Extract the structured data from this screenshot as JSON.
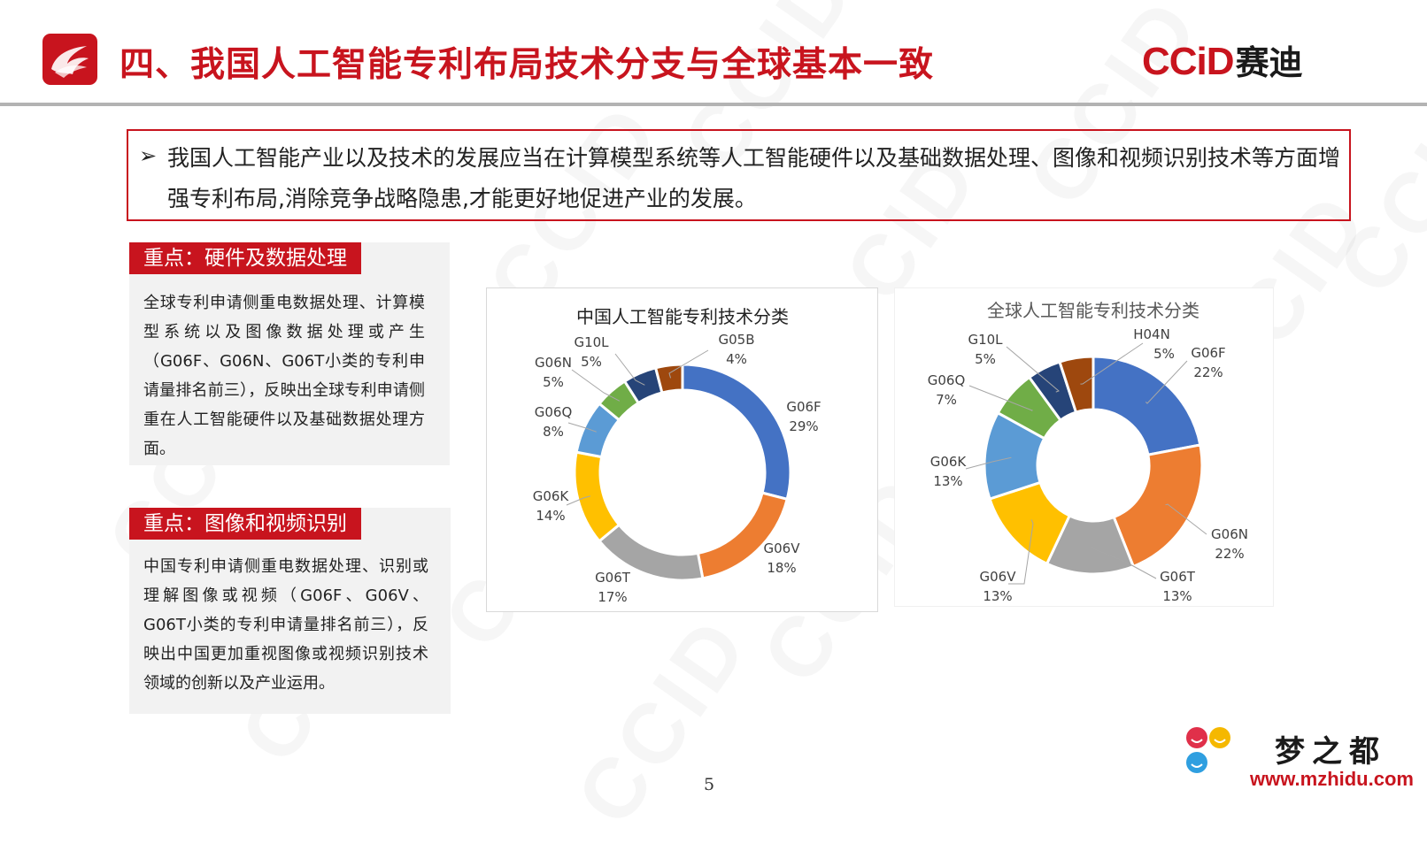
{
  "header": {
    "title": "四、我国人工智能专利布局技术分支与全球基本一致",
    "brand_latin": "CCiD",
    "brand_cn": "赛迪"
  },
  "summary": {
    "text": "我国人工智能产业以及技术的发展应当在计算模型系统等人工智能硬件以及基础数据处理、图像和视频识别技术等方面增强专利布局,消除竞争战略隐患,才能更好地促进产业的发展。"
  },
  "panels": [
    {
      "tag": "重点：硬件及数据处理",
      "text": "全球专利申请侧重电数据处理、计算模型系统以及图像数据处理或产生（G06F、G06N、G06T小类的专利申请量排名前三），反映出全球专利申请侧重在人工智能硬件以及基础数据处理方面。"
    },
    {
      "tag": "重点：图像和视频识别",
      "text": "中国专利申请侧重电数据处理、识别或理解图像或视频（G06F、G06V、G06T小类的专利申请量排名前三），反映出中国更加重视图像或视频识别技术领域的创新以及产业运用。"
    }
  ],
  "chart_data": [
    {
      "type": "pie",
      "donut": true,
      "title": "中国人工智能专利技术分类",
      "labels": [
        "G06F",
        "G06V",
        "G06T",
        "G06K",
        "G06Q",
        "G06N",
        "G10L",
        "G05B"
      ],
      "values": [
        29,
        18,
        17,
        14,
        8,
        5,
        5,
        4
      ],
      "value_labels": [
        "29%",
        "18%",
        "17%",
        "14%",
        "8%",
        "5%",
        "5%",
        "4%"
      ],
      "colors": [
        "#4472c4",
        "#ed7d31",
        "#a5a5a5",
        "#ffc000",
        "#5b9bd5",
        "#70ad47",
        "#264478",
        "#9e480e"
      ]
    },
    {
      "type": "pie",
      "donut": true,
      "title": "全球人工智能专利技术分类",
      "labels": [
        "G06F",
        "G06N",
        "G06T",
        "G06V",
        "G06K",
        "G06Q",
        "G10L",
        "H04N"
      ],
      "values": [
        22,
        22,
        13,
        13,
        13,
        7,
        5,
        5
      ],
      "value_labels": [
        "22%",
        "22%",
        "13%",
        "13%",
        "13%",
        "7%",
        "5%",
        "5%"
      ],
      "colors": [
        "#4472c4",
        "#ed7d31",
        "#a5a5a5",
        "#ffc000",
        "#5b9bd5",
        "#70ad47",
        "#264478",
        "#9e480e"
      ]
    }
  ],
  "footer": {
    "page_number": "5",
    "site_name": "梦之都",
    "site_url": "www.mzhidu.com",
    "watermark": "CCID"
  }
}
